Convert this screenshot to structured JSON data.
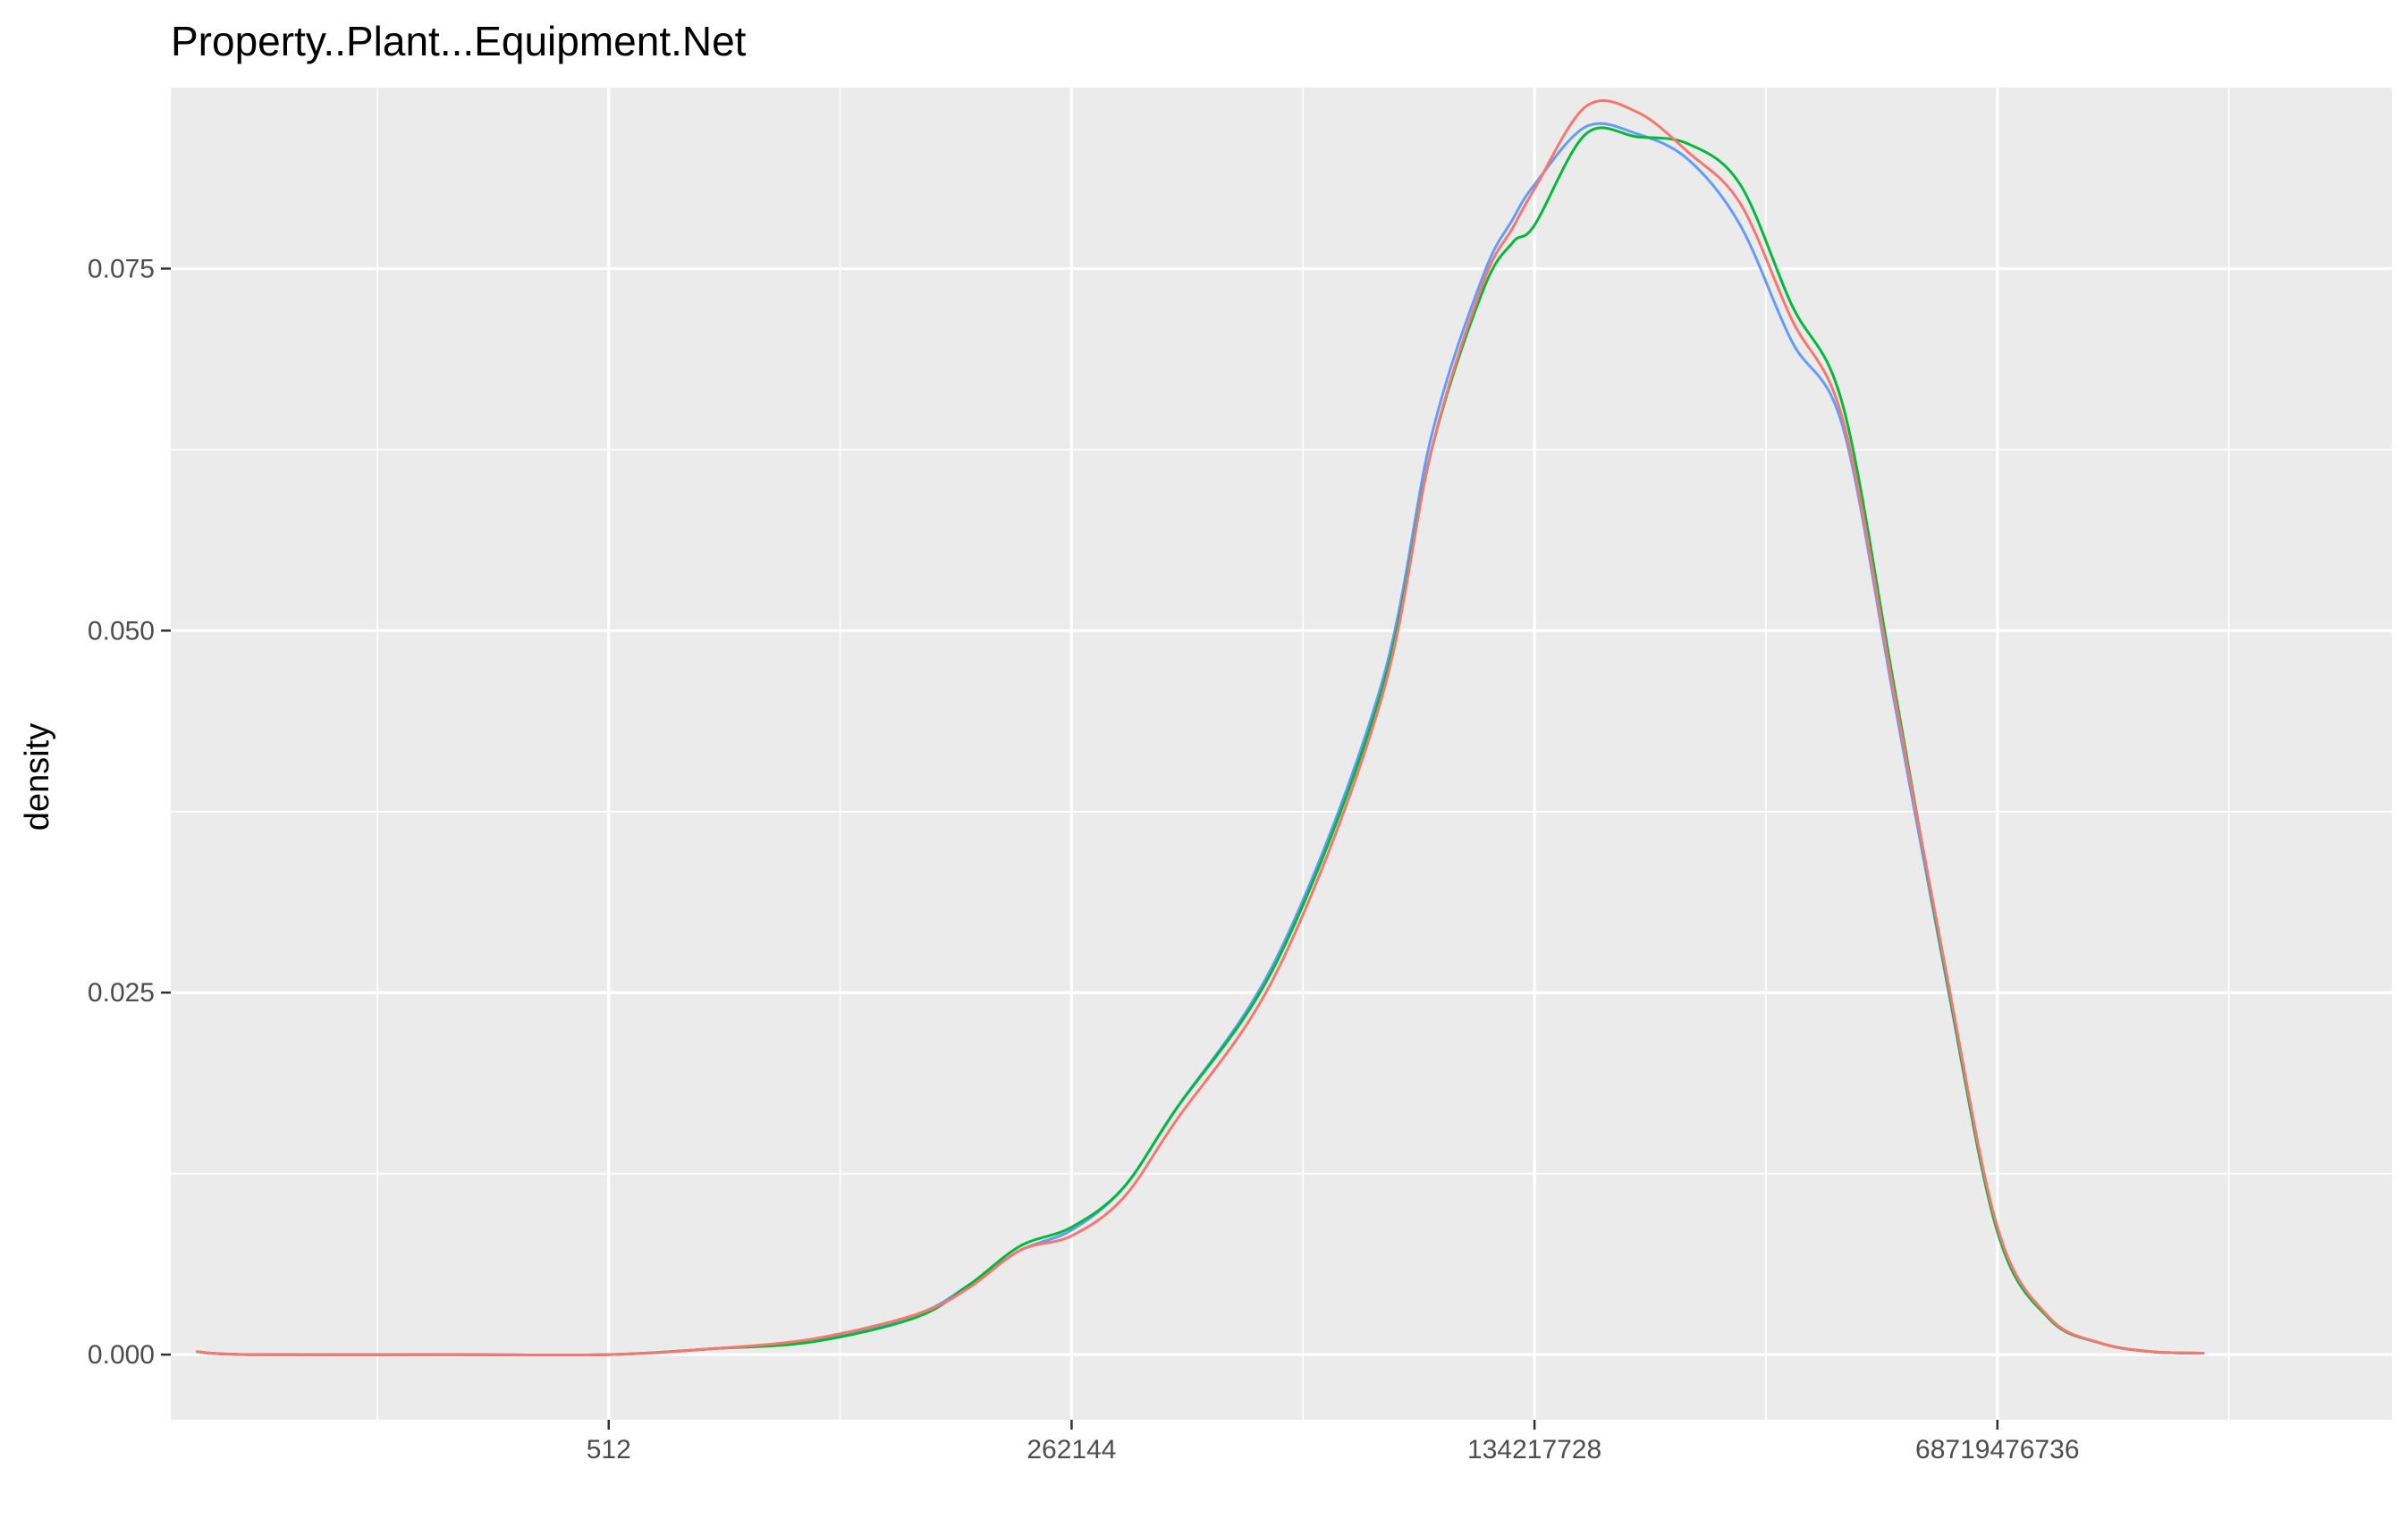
{
  "chart_data": {
    "type": "line",
    "title": "Property..Plant...Equipment.Net",
    "xlabel": "",
    "ylabel": "density",
    "x_scale": "log2",
    "x_tick_values": [
      512,
      262144,
      134217728,
      68719476736
    ],
    "x_tick_labels": [
      "512",
      "262144",
      "134217728",
      "68719476736"
    ],
    "xlim": [
      1.4,
      14000000000000.0
    ],
    "ylim": [
      -0.0045,
      0.0875
    ],
    "y_ticks": [
      0.0,
      0.025,
      0.05,
      0.075
    ],
    "y_tick_labels": [
      "0.000",
      "0.025",
      "0.050",
      "0.075"
    ],
    "grid": true,
    "legend": "none",
    "colors": {
      "panel_background": "#EBEBEB",
      "gridline": "#FFFFFF",
      "series_1": "#619CFF",
      "series_2": "#00BA38",
      "series_3": "#F8766D"
    },
    "series": [
      {
        "color": "#619CFF",
        "points": [
          [
            2,
            0.0002
          ],
          [
            4,
            0.0
          ],
          [
            64,
            0.0
          ],
          [
            512,
            0.0
          ],
          [
            2048,
            0.0004
          ],
          [
            8192,
            0.001
          ],
          [
            32768,
            0.0028
          ],
          [
            65536,
            0.0048
          ],
          [
            131072,
            0.0072
          ],
          [
            262144,
            0.0086
          ],
          [
            524288,
            0.0115
          ],
          [
            1048576,
            0.0168
          ],
          [
            4194304,
            0.0275
          ],
          [
            16777216,
            0.046
          ],
          [
            33554432,
            0.0635
          ],
          [
            67108864,
            0.0745
          ],
          [
            100000000,
            0.0784
          ],
          [
            134217728,
            0.0808
          ],
          [
            268435456,
            0.0848
          ],
          [
            536870912,
            0.0843
          ],
          [
            1073741824,
            0.0825
          ],
          [
            2147483648,
            0.078
          ],
          [
            4294967296,
            0.07
          ],
          [
            8589934592,
            0.064
          ],
          [
            17179869184,
            0.045
          ],
          [
            34359738368,
            0.026
          ],
          [
            68719476736,
            0.0085
          ],
          [
            137438953472,
            0.0025
          ],
          [
            274877906944,
            0.0008
          ],
          [
            549755813888,
            0.0002
          ],
          [
            1099511627776,
            0.0001
          ]
        ]
      },
      {
        "color": "#00BA38",
        "points": [
          [
            2,
            0.0002
          ],
          [
            4,
            0.0
          ],
          [
            64,
            0.0
          ],
          [
            512,
            0.0
          ],
          [
            2048,
            0.0004
          ],
          [
            8192,
            0.0009
          ],
          [
            32768,
            0.0026
          ],
          [
            65536,
            0.0048
          ],
          [
            131072,
            0.0075
          ],
          [
            262144,
            0.0088
          ],
          [
            524288,
            0.0115
          ],
          [
            1048576,
            0.0168
          ],
          [
            4194304,
            0.0272
          ],
          [
            16777216,
            0.0455
          ],
          [
            33554432,
            0.0625
          ],
          [
            67108864,
            0.0735
          ],
          [
            100000000,
            0.0768
          ],
          [
            134217728,
            0.078
          ],
          [
            268435456,
            0.0843
          ],
          [
            536870912,
            0.0841
          ],
          [
            1073741824,
            0.0836
          ],
          [
            2147483648,
            0.0808
          ],
          [
            4294967296,
            0.0725
          ],
          [
            8589934592,
            0.0655
          ],
          [
            17179869184,
            0.046
          ],
          [
            34359738368,
            0.0262
          ],
          [
            68719476736,
            0.0085
          ],
          [
            137438953472,
            0.0025
          ],
          [
            274877906944,
            0.0008
          ],
          [
            549755813888,
            0.0002
          ],
          [
            1099511627776,
            0.0001
          ]
        ]
      },
      {
        "color": "#F8766D",
        "points": [
          [
            2,
            0.0002
          ],
          [
            4,
            0.0
          ],
          [
            64,
            0.0
          ],
          [
            512,
            0.0
          ],
          [
            2048,
            0.0004
          ],
          [
            8192,
            0.0011
          ],
          [
            32768,
            0.0028
          ],
          [
            65536,
            0.0046
          ],
          [
            131072,
            0.0072
          ],
          [
            262144,
            0.0082
          ],
          [
            524288,
            0.0108
          ],
          [
            1048576,
            0.016
          ],
          [
            4194304,
            0.0265
          ],
          [
            16777216,
            0.045
          ],
          [
            33554432,
            0.0625
          ],
          [
            67108864,
            0.074
          ],
          [
            100000000,
            0.0778
          ],
          [
            134217728,
            0.0805
          ],
          [
            268435456,
            0.0862
          ],
          [
            536870912,
            0.0858
          ],
          [
            1073741824,
            0.083
          ],
          [
            2147483648,
            0.0795
          ],
          [
            4294967296,
            0.0715
          ],
          [
            8589934592,
            0.0645
          ],
          [
            17179869184,
            0.0455
          ],
          [
            34359738368,
            0.0265
          ],
          [
            68719476736,
            0.0088
          ],
          [
            137438953472,
            0.0026
          ],
          [
            274877906944,
            0.0008
          ],
          [
            549755813888,
            0.0002
          ],
          [
            1099511627776,
            0.0001
          ]
        ]
      }
    ]
  }
}
